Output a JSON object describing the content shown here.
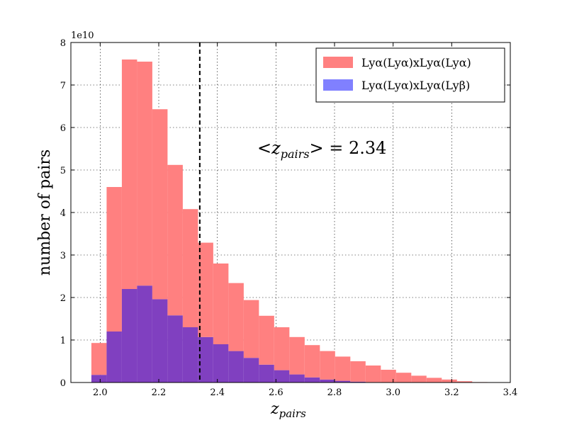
{
  "chart_data": {
    "type": "bar",
    "xlabel": "z_pairs",
    "ylabel": "number of pairs",
    "offset_label": "1e10",
    "xlim": [
      1.9,
      3.4
    ],
    "ylim": [
      0,
      8
    ],
    "y_scale": 10000000000.0,
    "xticks": [
      "2.0",
      "2.2",
      "2.4",
      "2.6",
      "2.8",
      "3.0",
      "3.2",
      "3.4"
    ],
    "yticks": [
      "0",
      "1",
      "2",
      "3",
      "4",
      "5",
      "6",
      "7",
      "8"
    ],
    "grid": true,
    "legend_position": "top-right",
    "bin_width": 0.052,
    "bin_edges_start": 1.97,
    "series": [
      {
        "name": "Lyα(Lyα)xLyα(Lyα)",
        "color": "#ff8080",
        "values": [
          0.93,
          4.6,
          7.6,
          7.55,
          6.43,
          5.12,
          4.08,
          3.29,
          2.8,
          2.34,
          1.94,
          1.57,
          1.3,
          1.07,
          0.88,
          0.74,
          0.61,
          0.5,
          0.4,
          0.3,
          0.23,
          0.16,
          0.11,
          0.07,
          0.03,
          0.01,
          0.0,
          0.0
        ]
      },
      {
        "name": "Lyα(Lyα)xLyα(Lyβ)",
        "color": "#8080ff",
        "values": [
          0.18,
          1.2,
          2.2,
          2.28,
          1.96,
          1.58,
          1.3,
          1.07,
          0.9,
          0.74,
          0.58,
          0.42,
          0.29,
          0.19,
          0.12,
          0.07,
          0.04,
          0.02,
          0.01,
          0.0,
          0.0,
          0.0,
          0.0,
          0.0,
          0.0,
          0.0,
          0.0,
          0.0
        ]
      }
    ],
    "overlap_color": "#8040c0",
    "mean_line": {
      "x": 2.34,
      "style": "dashed"
    },
    "annotation": {
      "prefix": "<",
      "var": "z",
      "sub": "pairs",
      "suffix": ">",
      "value_text": " = 2.34",
      "x": 2.45,
      "y": 5.55
    }
  }
}
